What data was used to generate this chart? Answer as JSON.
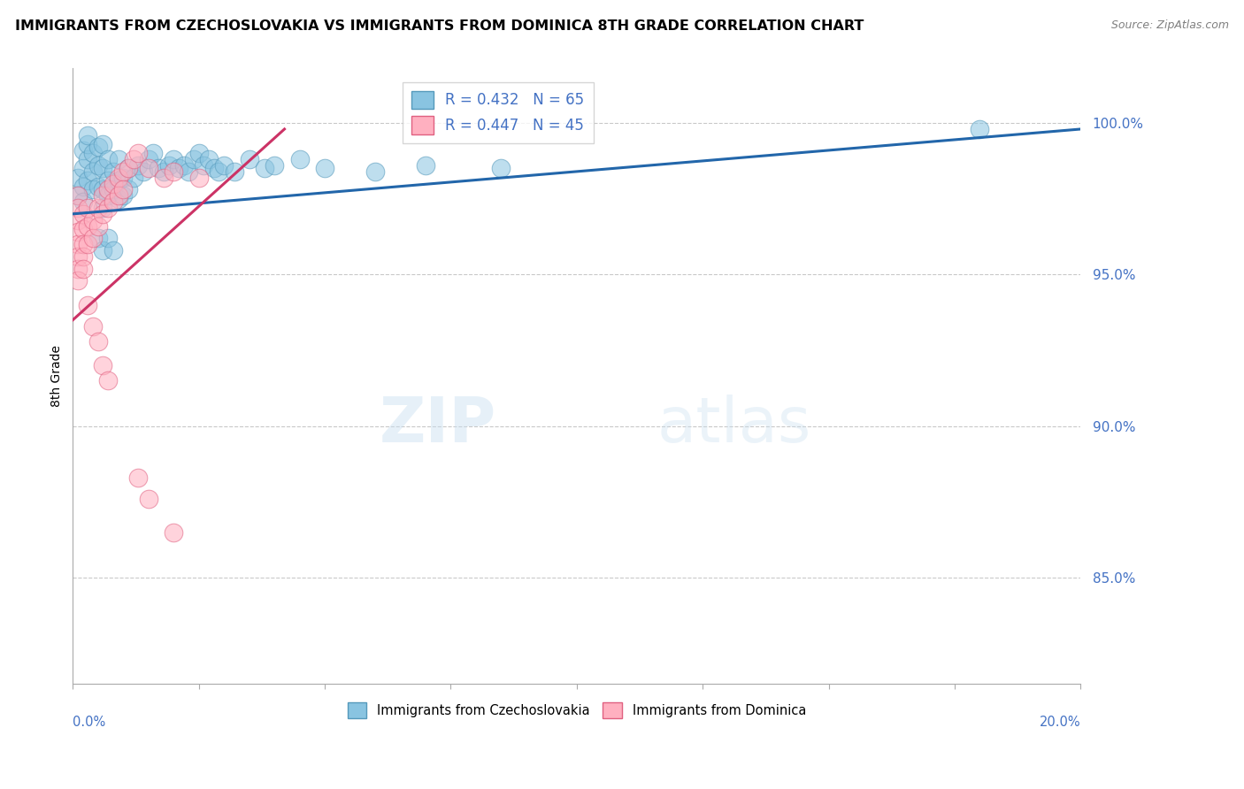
{
  "title": "IMMIGRANTS FROM CZECHOSLOVAKIA VS IMMIGRANTS FROM DOMINICA 8TH GRADE CORRELATION CHART",
  "source": "Source: ZipAtlas.com",
  "ylabel": "8th Grade",
  "yaxis_labels": [
    "85.0%",
    "90.0%",
    "95.0%",
    "100.0%"
  ],
  "yaxis_values": [
    0.85,
    0.9,
    0.95,
    1.0
  ],
  "xlim": [
    0.0,
    0.2
  ],
  "ylim": [
    0.815,
    1.018
  ],
  "background_color": "#ffffff",
  "title_fontsize": 11.5,
  "source_fontsize": 9,
  "blue_color": "#89c4e1",
  "blue_edge": "#5599bb",
  "pink_color": "#ffb0c0",
  "pink_edge": "#e06080",
  "blue_line_color": "#2266aa",
  "pink_line_color": "#cc3366",
  "blue_line_x0": 0.0,
  "blue_line_y0": 0.97,
  "blue_line_x1": 0.2,
  "blue_line_y1": 0.998,
  "pink_line_x0": 0.0,
  "pink_line_y0": 0.935,
  "pink_line_x1": 0.042,
  "pink_line_y1": 0.998,
  "legend_r_blue": "R = 0.432   N = 65",
  "legend_r_pink": "R = 0.447   N = 45",
  "legend_blue_label": "Immigrants from Czechoslovakia",
  "legend_pink_label": "Immigrants from Dominica",
  "dot_size": 220,
  "blue_x": [
    0.001,
    0.001,
    0.002,
    0.002,
    0.002,
    0.002,
    0.003,
    0.003,
    0.003,
    0.003,
    0.004,
    0.004,
    0.004,
    0.005,
    0.005,
    0.005,
    0.006,
    0.006,
    0.006,
    0.006,
    0.007,
    0.007,
    0.007,
    0.008,
    0.008,
    0.009,
    0.009,
    0.009,
    0.01,
    0.01,
    0.011,
    0.011,
    0.012,
    0.013,
    0.014,
    0.015,
    0.016,
    0.017,
    0.018,
    0.019,
    0.02,
    0.021,
    0.022,
    0.023,
    0.024,
    0.025,
    0.026,
    0.027,
    0.028,
    0.029,
    0.03,
    0.032,
    0.035,
    0.038,
    0.04,
    0.045,
    0.05,
    0.06,
    0.07,
    0.085,
    0.005,
    0.006,
    0.007,
    0.008,
    0.18
  ],
  "blue_y": [
    0.982,
    0.976,
    0.985,
    0.979,
    0.974,
    0.991,
    0.988,
    0.981,
    0.993,
    0.996,
    0.99,
    0.984,
    0.978,
    0.992,
    0.986,
    0.979,
    0.985,
    0.978,
    0.972,
    0.993,
    0.988,
    0.981,
    0.976,
    0.984,
    0.978,
    0.988,
    0.981,
    0.975,
    0.982,
    0.976,
    0.985,
    0.978,
    0.982,
    0.986,
    0.984,
    0.988,
    0.99,
    0.985,
    0.984,
    0.986,
    0.988,
    0.985,
    0.986,
    0.984,
    0.988,
    0.99,
    0.986,
    0.988,
    0.985,
    0.984,
    0.986,
    0.984,
    0.988,
    0.985,
    0.986,
    0.988,
    0.985,
    0.984,
    0.986,
    0.985,
    0.962,
    0.958,
    0.962,
    0.958,
    0.998
  ],
  "pink_x": [
    0.001,
    0.001,
    0.001,
    0.001,
    0.001,
    0.001,
    0.001,
    0.001,
    0.002,
    0.002,
    0.002,
    0.002,
    0.002,
    0.003,
    0.003,
    0.003,
    0.004,
    0.004,
    0.005,
    0.005,
    0.006,
    0.006,
    0.007,
    0.007,
    0.008,
    0.008,
    0.009,
    0.009,
    0.01,
    0.01,
    0.011,
    0.012,
    0.013,
    0.015,
    0.018,
    0.02,
    0.025,
    0.003,
    0.004,
    0.005,
    0.006,
    0.007,
    0.013,
    0.015,
    0.02
  ],
  "pink_y": [
    0.976,
    0.972,
    0.968,
    0.964,
    0.96,
    0.956,
    0.952,
    0.948,
    0.97,
    0.965,
    0.96,
    0.956,
    0.952,
    0.972,
    0.966,
    0.96,
    0.968,
    0.962,
    0.972,
    0.966,
    0.976,
    0.97,
    0.978,
    0.972,
    0.98,
    0.974,
    0.982,
    0.976,
    0.984,
    0.978,
    0.985,
    0.988,
    0.99,
    0.985,
    0.982,
    0.984,
    0.982,
    0.94,
    0.933,
    0.928,
    0.92,
    0.915,
    0.883,
    0.876,
    0.865
  ]
}
